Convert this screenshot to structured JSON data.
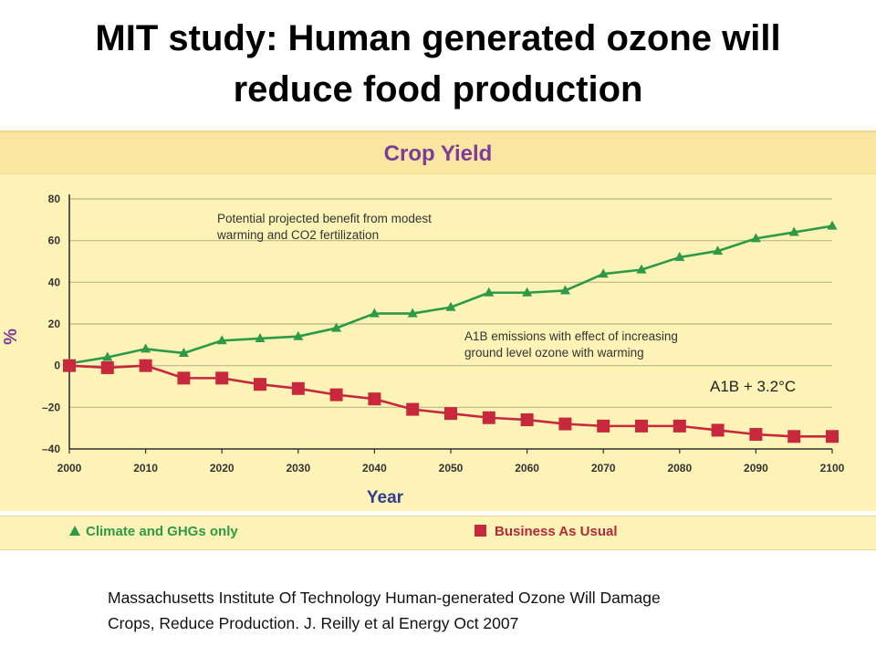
{
  "slide": {
    "title_line1": "MIT study: Human generated ozone will",
    "title_line2": "reduce food production",
    "citation_line1": "Massachusetts Institute Of Technology  Human-generated Ozone Will Damage",
    "citation_line2": "Crops, Reduce Production. J. Reilly et al Energy Oct 2007"
  },
  "legend": {
    "climate_label": "Climate and GHGs only",
    "bau_label": "Business As Usual"
  },
  "colors": {
    "panel_bg": "#fdf3b7",
    "title_band_bg": "#f9e7a1",
    "title_color": "#7e3b98",
    "axis_label_color": "#2f3d8f",
    "climate_series": "#2c9a46",
    "bau_series": "#c8283c",
    "grid": "#b9b88a"
  },
  "chart_data": {
    "type": "line",
    "title": "Crop Yield",
    "xlabel": "Year",
    "ylabel": "%",
    "xlim": [
      2000,
      2100
    ],
    "ylim": [
      -40,
      80
    ],
    "x_ticks": [
      "2000",
      "2010",
      "2020",
      "2030",
      "2040",
      "2050",
      "2060",
      "2070",
      "2080",
      "2090",
      "2100"
    ],
    "y_ticks": [
      "80",
      "60",
      "40",
      "20",
      "0",
      "–20",
      "–40"
    ],
    "grid": true,
    "legend_position": "bottom",
    "series": [
      {
        "name": "Climate and GHGs only",
        "marker": "triangle",
        "x": [
          2000,
          2005,
          2010,
          2015,
          2020,
          2025,
          2030,
          2035,
          2040,
          2045,
          2050,
          2055,
          2060,
          2065,
          2070,
          2075,
          2080,
          2085,
          2090,
          2095,
          2100
        ],
        "y": [
          1,
          4,
          8,
          6,
          12,
          13,
          14,
          18,
          25,
          25,
          28,
          35,
          35,
          36,
          44,
          46,
          52,
          55,
          61,
          64,
          67
        ]
      },
      {
        "name": "Business As Usual",
        "marker": "square",
        "x": [
          2000,
          2005,
          2010,
          2015,
          2020,
          2025,
          2030,
          2035,
          2040,
          2045,
          2050,
          2055,
          2060,
          2065,
          2070,
          2075,
          2080,
          2085,
          2090,
          2095,
          2100
        ],
        "y": [
          0,
          -1,
          0,
          -6,
          -6,
          -9,
          -11,
          -14,
          -16,
          -21,
          -23,
          -25,
          -26,
          -28,
          -29,
          -29,
          -29,
          -31,
          -33,
          -34,
          -34
        ]
      }
    ],
    "annotations": [
      {
        "name": "green-annotation",
        "lines": [
          "Potential projected benefit from modest",
          "warming and CO2 fertilization"
        ]
      },
      {
        "name": "red-annotation",
        "lines": [
          "A1B emissions with effect of increasing",
          "ground level ozone with warming"
        ]
      },
      {
        "name": "scenario-label",
        "lines": [
          "A1B + 3.2°C"
        ]
      }
    ]
  }
}
